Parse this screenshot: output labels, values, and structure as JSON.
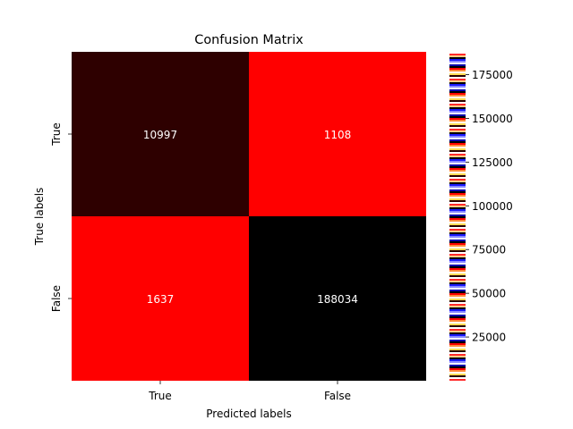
{
  "chart_data": {
    "type": "heatmap",
    "title": "Confusion Matrix",
    "xlabel": "Predicted labels",
    "ylabel": "True labels",
    "x_categories": [
      "True",
      "False"
    ],
    "y_categories": [
      "True",
      "False"
    ],
    "values": [
      [
        10997,
        1108
      ],
      [
        1637,
        188034
      ]
    ],
    "colorbar": {
      "range": [
        0,
        188034
      ],
      "ticks": [
        25000,
        50000,
        75000,
        100000,
        125000,
        150000,
        175000
      ],
      "tick_labels": [
        "25000",
        "50000",
        "75000",
        "100000",
        "125000",
        "150000",
        "175000"
      ]
    },
    "cell_colors": [
      [
        "#2e0000",
        "#ff0000"
      ],
      [
        "#ff0000",
        "#000000"
      ]
    ],
    "annotation_color": "#ffffff",
    "grid": false
  }
}
